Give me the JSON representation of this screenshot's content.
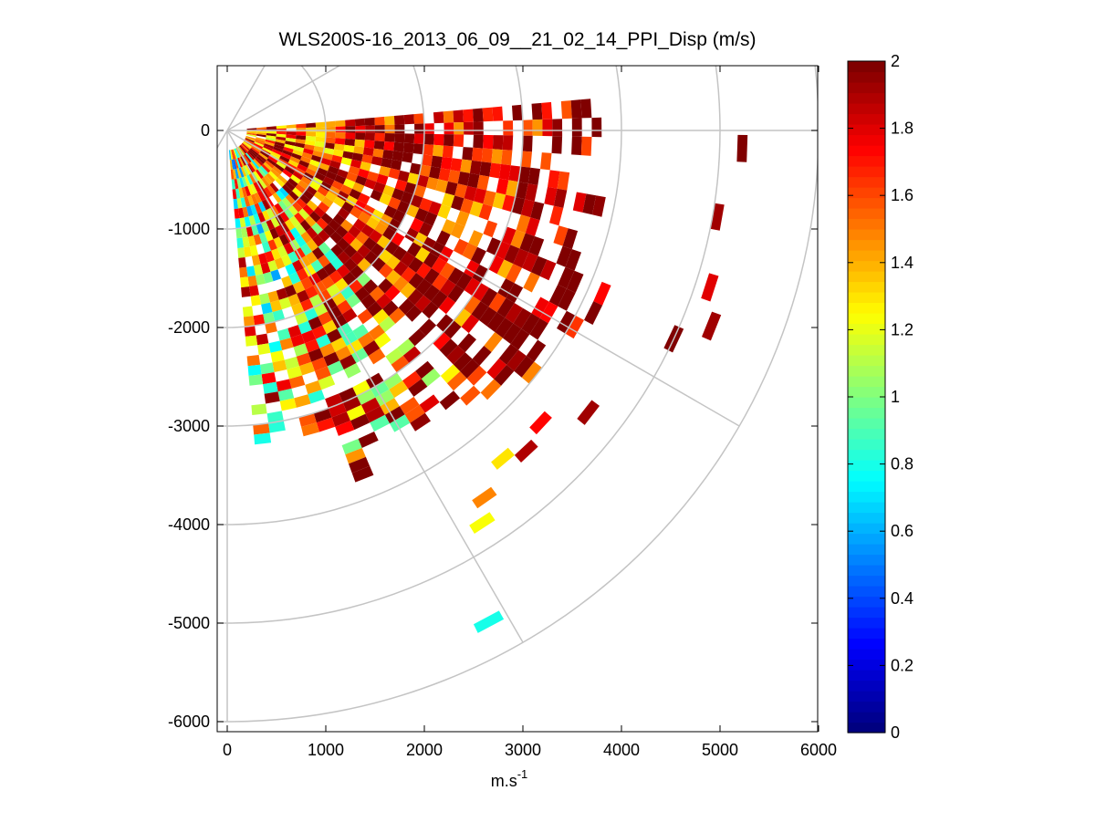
{
  "chart_data": {
    "type": "heatmap",
    "subtype": "ppi-polar",
    "title": "WLS200S-16_2013_06_09__21_02_14_PPI_Disp (m/s)",
    "xlabel": "m.s",
    "xlabel_sup": "-1",
    "ylabel": "",
    "xlim": [
      0,
      6000
    ],
    "ylim": [
      -6000,
      650
    ],
    "xticks": [
      0,
      1000,
      2000,
      3000,
      4000,
      5000,
      6000
    ],
    "xtick_labels": [
      "0",
      "1000",
      "2000",
      "3000",
      "4000",
      "5000",
      "6000"
    ],
    "yticks": [
      0,
      -1000,
      -2000,
      -3000,
      -4000,
      -5000,
      -6000
    ],
    "ytick_labels": [
      "0",
      "-1000",
      "-2000",
      "-3000",
      "-4000",
      "-5000",
      "-6000"
    ],
    "polar_grid": {
      "ring_radii": [
        1000,
        2000,
        3000,
        4000,
        5000,
        6000
      ],
      "spoke_angles_deg": [
        0,
        30,
        60,
        90,
        120
      ]
    },
    "sector": {
      "azimuth_start_deg": 5,
      "azimuth_end_deg": -85,
      "azimuth_step_deg": 3,
      "range_gate_m": 100
    },
    "colorbar": {
      "colormap": "jet",
      "min": 0,
      "max": 2,
      "ticks": [
        0,
        0.2,
        0.4,
        0.6,
        0.8,
        1,
        1.2,
        1.4,
        1.6,
        1.8,
        2
      ],
      "tick_labels": [
        "0",
        "0.2",
        "0.4",
        "0.6",
        "0.8",
        "1",
        "1.2",
        "1.4",
        "1.6",
        "1.8",
        "2"
      ]
    },
    "dispersion_field": [
      {
        "from_deg": 5,
        "to_deg": -20,
        "range_m": [
          200,
          3900
        ],
        "typical_value": 1.6,
        "spread": 0.5
      },
      {
        "from_deg": -20,
        "to_deg": -45,
        "range_m": [
          200,
          4200
        ],
        "typical_value": 1.7,
        "spread": 0.6
      },
      {
        "from_deg": -45,
        "to_deg": -70,
        "range_m": [
          200,
          3800
        ],
        "typical_value": 1.3,
        "spread": 0.7
      },
      {
        "from_deg": -70,
        "to_deg": -85,
        "range_m": [
          200,
          3300
        ],
        "typical_value": 1.1,
        "spread": 0.7
      }
    ],
    "isolated_cells": [
      {
        "az_deg": -2,
        "range_m": 5180,
        "value": 2.0
      },
      {
        "az_deg": -10,
        "range_m": 5000,
        "value": 1.95
      },
      {
        "az_deg": -18,
        "range_m": 5100,
        "value": 1.8
      },
      {
        "az_deg": -22,
        "range_m": 5250,
        "value": 1.95
      },
      {
        "az_deg": -25,
        "range_m": 4950,
        "value": 2.0
      },
      {
        "az_deg": -38,
        "range_m": 4600,
        "value": 1.95
      },
      {
        "az_deg": -43,
        "range_m": 4300,
        "value": 1.75
      },
      {
        "az_deg": -47,
        "range_m": 4400,
        "value": 1.9
      },
      {
        "az_deg": -50,
        "range_m": 4300,
        "value": 1.3
      },
      {
        "az_deg": -55,
        "range_m": 4500,
        "value": 1.5
      },
      {
        "az_deg": -57,
        "range_m": 4700,
        "value": 1.25
      },
      {
        "az_deg": -62,
        "range_m": 5600,
        "value": 0.8
      }
    ]
  }
}
